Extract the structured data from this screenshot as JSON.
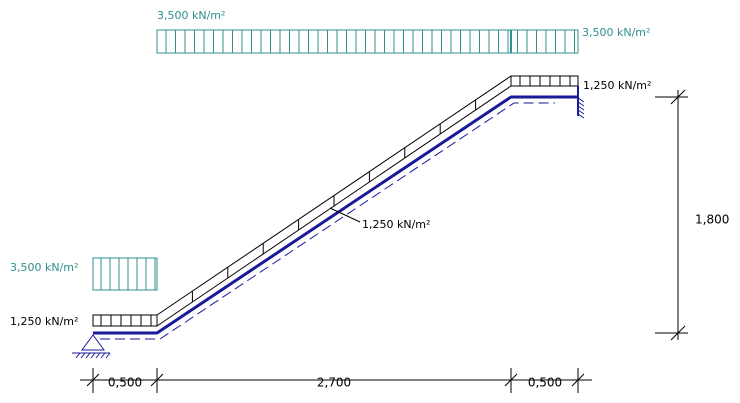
{
  "loads": {
    "top_live_left": "3,500 kN/m²",
    "top_live_right": "3,500 kN/m²",
    "right_dead": "1,250 kN/m²",
    "incline_dead": "1,250 kN/m²",
    "left_live": "3,500 kN/m²",
    "left_dead": "1,250 kN/m²"
  },
  "dimensions": {
    "height": "1,800",
    "left_landing": "0,500",
    "flight": "2,700",
    "right_landing": "0,500"
  }
}
